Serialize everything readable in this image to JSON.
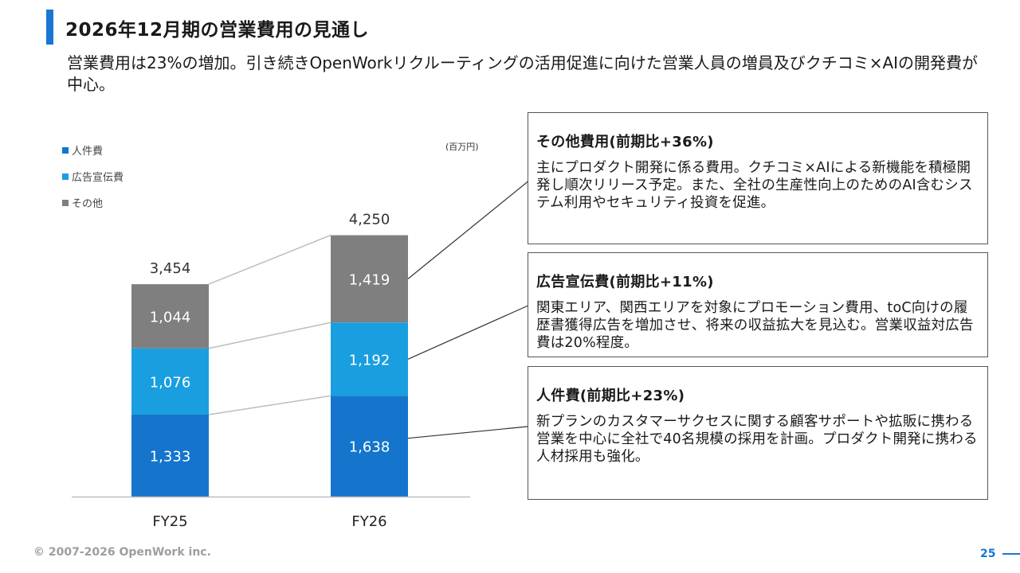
{
  "header": {
    "title": "2026年12月期の営業費用の見通し",
    "subtitle": "営業費用は23%の増加。引き続きOpenWorkリクルーティングの活用促進に向けた営業人員の増員及びクチコミ×AIの開発費が中心。"
  },
  "chart_data": {
    "type": "bar",
    "stacked": true,
    "unit_label": "(百万円)",
    "categories": [
      "FY25",
      "FY26"
    ],
    "totals": [
      3454,
      4250
    ],
    "total_labels": [
      "3,454",
      "4,250"
    ],
    "series": [
      {
        "name": "人件費",
        "color": "#1575cc",
        "values": [
          1333,
          1638
        ],
        "labels": [
          "1,333",
          "1,638"
        ]
      },
      {
        "name": "広告宣伝費",
        "color": "#199ee0",
        "values": [
          1076,
          1192
        ],
        "labels": [
          "1,076",
          "1,192"
        ]
      },
      {
        "name": "その他",
        "color": "#7f7f7f",
        "values": [
          1044,
          1419
        ],
        "labels": [
          "1,044",
          "1,419"
        ]
      }
    ],
    "legend_position": "top-left",
    "grid": false
  },
  "boxes": [
    {
      "title": "その他費用(前期比+36%)",
      "body": "主にプロダクト開発に係る費用。クチコミ×AIによる新機能を積極開発し順次リリース予定。また、全社の生産性向上のためのAI含むシステム利用やセキュリティ投資を促進。"
    },
    {
      "title": "広告宣伝費(前期比+11%)",
      "body": "関東エリア、関西エリアを対象にプロモーション費用、toC向けの履歴書獲得広告を増加させ、将来の収益拡大を見込む。営業収益対広告費は20%程度。"
    },
    {
      "title": "人件費(前期比+23%)",
      "body": "新プランのカスタマーサクセスに関する顧客サポートや拡販に携わる営業を中心に全社で40名規模の採用を計画。プロダクト開発に携わる人材採用も強化。"
    }
  ],
  "footer": {
    "copyright": "© 2007-2026 OpenWork inc.",
    "page_number": "25"
  }
}
